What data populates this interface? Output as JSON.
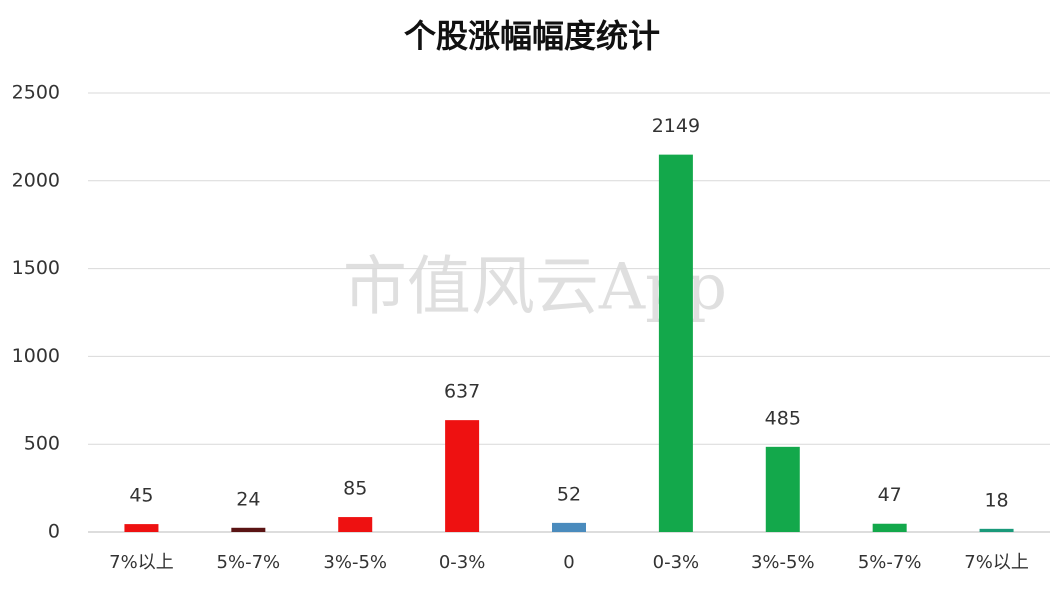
{
  "chart_data": {
    "type": "bar",
    "title": "个股涨幅幅度统计",
    "watermark": "市值风云App",
    "categories": [
      "7%以上",
      "5%-7%",
      "3%-5%",
      "0-3%",
      "0",
      "0-3%",
      "3%-5%",
      "5%-7%",
      "7%以上"
    ],
    "values": [
      45,
      24,
      85,
      637,
      52,
      2149,
      485,
      47,
      18
    ],
    "colors": [
      "#ee1111",
      "#5a1414",
      "#ee1111",
      "#ee1111",
      "#4a8bbd",
      "#13a84b",
      "#13a84b",
      "#13a84b",
      "#1a9a7a"
    ],
    "ylim": [
      0,
      2500
    ],
    "yticks": [
      0,
      500,
      1000,
      1500,
      2000,
      2500
    ],
    "grid": true
  }
}
